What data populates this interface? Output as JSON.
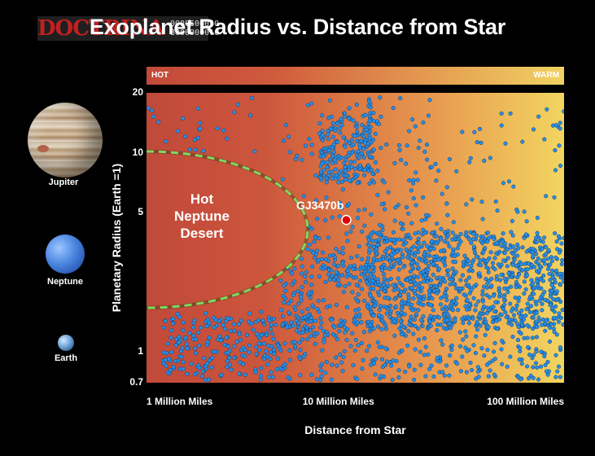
{
  "header": {
    "title": "Exoplanet Radius vs. Distance from Star",
    "watermark_text": "DOCTRINA",
    "watermark_code": "0080506050\n8000000010"
  },
  "temperature_bar": {
    "left_label": "HOT",
    "right_label": "WARM"
  },
  "reference_planets": [
    {
      "name": "Jupiter",
      "icon": "jupiter-icon"
    },
    {
      "name": "Neptune",
      "icon": "neptune-icon"
    },
    {
      "name": "Earth",
      "icon": "earth-icon"
    }
  ],
  "colors": {
    "point_fill": "#2a8fe6",
    "point_stroke": "#0b3a6b",
    "highlight": "#e00000",
    "desert_boundary": "#7fd860",
    "hot": "#c0493a",
    "warm": "#f2d560"
  },
  "chart_data": {
    "type": "scatter",
    "title": "Exoplanet Radius vs. Distance from Star",
    "xlabel": "Distance from Star",
    "ylabel": "Planetary Radius (Earth =1)",
    "x_scale": "log",
    "y_scale": "log",
    "x_range_million_miles": [
      1,
      150
    ],
    "y_range": [
      0.7,
      20
    ],
    "x_tick_values": [
      1,
      10,
      100
    ],
    "x_tick_labels": [
      "1 Million Miles",
      "10 Million Miles",
      "100 Million Miles"
    ],
    "y_tick_values": [
      0.7,
      1,
      5,
      10,
      20
    ],
    "y_tick_labels": [
      "0.7",
      "1",
      "5",
      "10",
      "20"
    ],
    "grid": false,
    "region_label": "Hot\nNeptune\nDesert",
    "highlight": {
      "name": "GJ3470b",
      "x_million_miles": 11,
      "y": 4.6
    },
    "clusters": [
      {
        "x_min": 8,
        "x_max": 16,
        "y_min": 7,
        "y_max": 16,
        "count": 200
      },
      {
        "x_min": 5,
        "x_max": 30,
        "y_min": 5,
        "y_max": 19,
        "count": 110
      },
      {
        "x_min": 30,
        "x_max": 150,
        "y_min": 4,
        "y_max": 17,
        "count": 60
      },
      {
        "x_min": 14,
        "x_max": 150,
        "y_min": 1.3,
        "y_max": 4,
        "count": 950
      },
      {
        "x_min": 1.2,
        "x_max": 150,
        "y_min": 0.72,
        "y_max": 1.5,
        "count": 450
      },
      {
        "x_min": 5,
        "x_max": 14,
        "y_min": 1.2,
        "y_max": 3.5,
        "count": 160
      },
      {
        "x_min": 7,
        "x_max": 40,
        "y_min": 2,
        "y_max": 5,
        "count": 140
      },
      {
        "x_min": 1.0,
        "x_max": 4,
        "y_min": 10,
        "y_max": 19,
        "count": 25
      },
      {
        "x_min": 1.3,
        "x_max": 5,
        "y_min": 0.8,
        "y_max": 1.6,
        "count": 70
      }
    ]
  }
}
